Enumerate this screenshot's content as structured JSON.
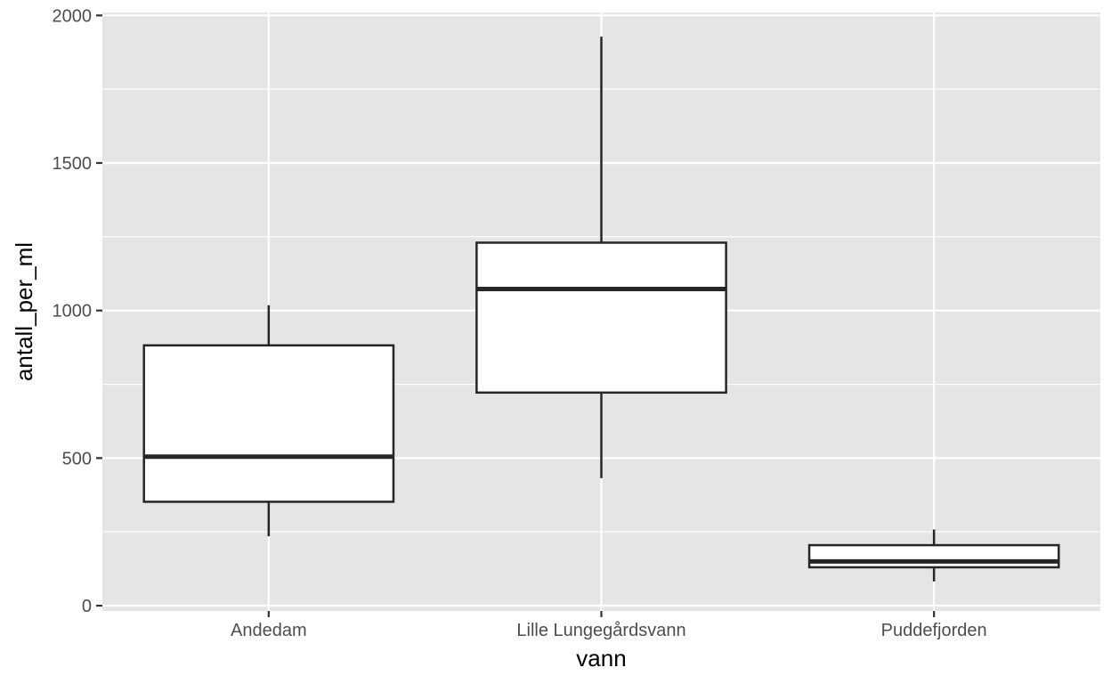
{
  "chart_data": {
    "type": "boxplot",
    "xlabel": "vann",
    "ylabel": "antall_per_ml",
    "ylim": [
      -18,
      2010
    ],
    "y_ticks": [
      0,
      500,
      1000,
      1500,
      2000
    ],
    "y_tick_labels": [
      "0",
      "500",
      "1000",
      "1500",
      "2000"
    ],
    "grid": true,
    "colors": {
      "panel": "#e5e5e5",
      "grid": "#ffffff",
      "box_fill": "#ffffff",
      "box_line": "#262626",
      "tick_text": "#4d4d4d"
    },
    "categories": [
      "Andedam",
      "Lille Lungegårdsvann",
      "Puddefjorden"
    ],
    "boxes": [
      {
        "category": "Andedam",
        "whisker_low": 235,
        "q1": 352,
        "median": 505,
        "q3": 882,
        "whisker_high": 1018
      },
      {
        "category": "Lille Lungegårdsvann",
        "whisker_low": 432,
        "q1": 722,
        "median": 1073,
        "q3": 1230,
        "whisker_high": 1928
      },
      {
        "category": "Puddefjorden",
        "whisker_low": 82,
        "q1": 130,
        "median": 150,
        "q3": 205,
        "whisker_high": 258
      }
    ]
  }
}
